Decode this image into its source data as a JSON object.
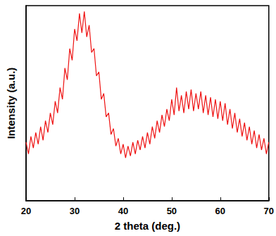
{
  "chart_data": {
    "type": "line",
    "xlabel": "2 theta (deg.)",
    "ylabel": "Intensity (a.u.)",
    "x": [
      20,
      20.5,
      21,
      21.5,
      22,
      22.5,
      23,
      23.5,
      24,
      24.5,
      25,
      25.5,
      26,
      26.5,
      27,
      27.5,
      28,
      28.5,
      29,
      29.5,
      30,
      30.5,
      31,
      31.5,
      32,
      32.5,
      33,
      33.5,
      34,
      34.5,
      35,
      35.5,
      36,
      36.5,
      37,
      37.5,
      38,
      38.5,
      39,
      39.5,
      40,
      40.5,
      41,
      41.5,
      42,
      42.5,
      43,
      43.5,
      44,
      44.5,
      45,
      45.5,
      46,
      46.5,
      47,
      47.5,
      48,
      48.5,
      49,
      49.5,
      50,
      50.5,
      51,
      51.5,
      52,
      52.5,
      53,
      53.5,
      54,
      54.5,
      55,
      55.5,
      56,
      56.5,
      57,
      57.5,
      58,
      58.5,
      59,
      59.5,
      60,
      60.5,
      61,
      61.5,
      62,
      62.5,
      63,
      63.5,
      64,
      64.5,
      65,
      65.5,
      66,
      66.5,
      67,
      67.5,
      68,
      68.5,
      69,
      69.5,
      70
    ],
    "values": [
      30,
      24,
      33,
      27,
      35,
      29,
      38,
      31,
      41,
      35,
      45,
      39,
      51,
      45,
      58,
      52,
      68,
      62,
      78,
      72,
      88,
      82,
      96,
      86,
      97,
      84,
      90,
      76,
      78,
      64,
      66,
      52,
      55,
      43,
      45,
      34,
      37,
      28,
      32,
      24,
      29,
      22,
      28,
      23,
      30,
      24,
      31,
      26,
      33,
      27,
      35,
      29,
      38,
      32,
      41,
      35,
      44,
      38,
      47,
      41,
      52,
      44,
      58,
      46,
      54,
      45,
      56,
      47,
      57,
      46,
      55,
      47,
      56,
      45,
      54,
      44,
      53,
      43,
      52,
      42,
      51,
      41,
      50,
      39,
      47,
      37,
      45,
      35,
      42,
      33,
      40,
      31,
      38,
      29,
      36,
      27,
      34,
      26,
      32,
      24,
      30
    ],
    "color": "#ee1111",
    "xlim": [
      20,
      70
    ],
    "xticks": [
      20,
      30,
      40,
      50,
      60,
      70
    ],
    "ylim": [
      0,
      100
    ],
    "grid": false,
    "tick_labels": "x"
  }
}
